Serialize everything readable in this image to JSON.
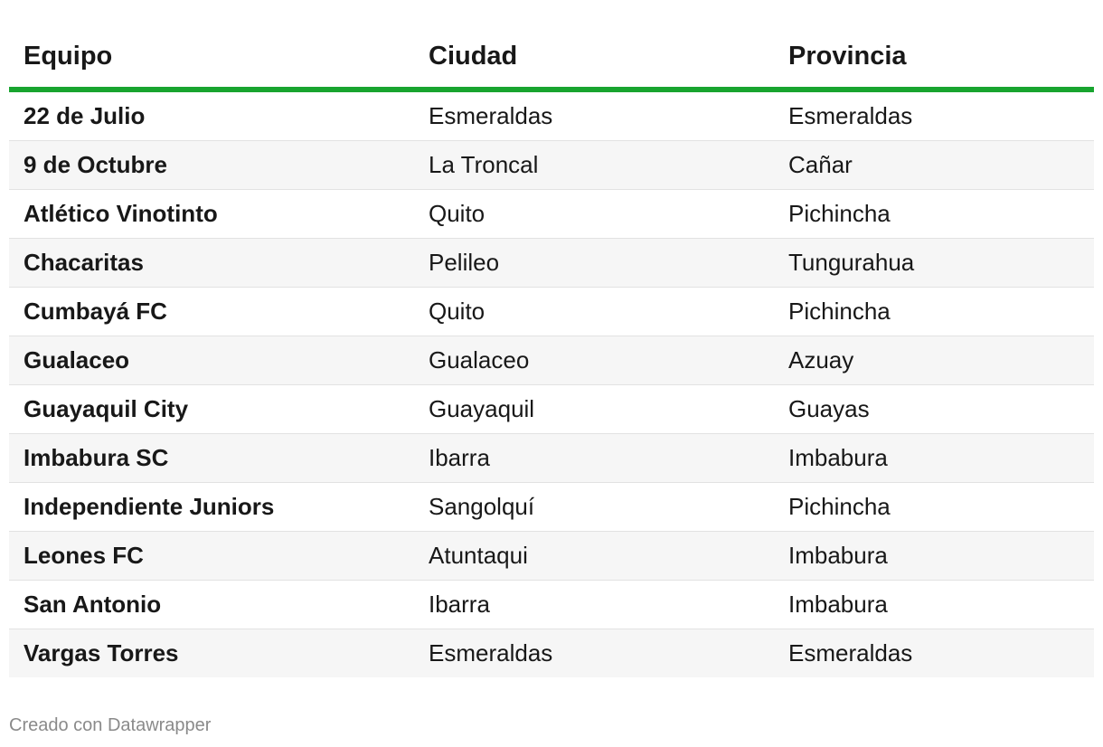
{
  "table": {
    "headers": [
      "Equipo",
      "Ciudad",
      "Provincia"
    ],
    "rows": [
      [
        "22 de Julio",
        "Esmeraldas",
        "Esmeraldas"
      ],
      [
        "9 de Octubre",
        "La Troncal",
        "Cañar"
      ],
      [
        "Atlético Vinotinto",
        "Quito",
        "Pichincha"
      ],
      [
        "Chacaritas",
        "Pelileo",
        "Tungurahua"
      ],
      [
        "Cumbayá FC",
        "Quito",
        "Pichincha"
      ],
      [
        "Gualaceo",
        "Gualaceo",
        "Azuay"
      ],
      [
        "Guayaquil City",
        "Guayaquil",
        "Guayas"
      ],
      [
        "Imbabura SC",
        "Ibarra",
        "Imbabura"
      ],
      [
        "Independiente Juniors",
        "Sangolquí",
        "Pichincha"
      ],
      [
        "Leones FC",
        "Atuntaqui",
        "Imbabura"
      ],
      [
        "San Antonio",
        "Ibarra",
        "Imbabura"
      ],
      [
        "Vargas Torres",
        "Esmeraldas",
        "Esmeraldas"
      ]
    ]
  },
  "footer": {
    "credit": "Creado con Datawrapper"
  },
  "colors": {
    "header_rule": "#18a42f",
    "stripe": "#f6f6f6",
    "text": "#181818",
    "credit": "#8a8a8a"
  }
}
